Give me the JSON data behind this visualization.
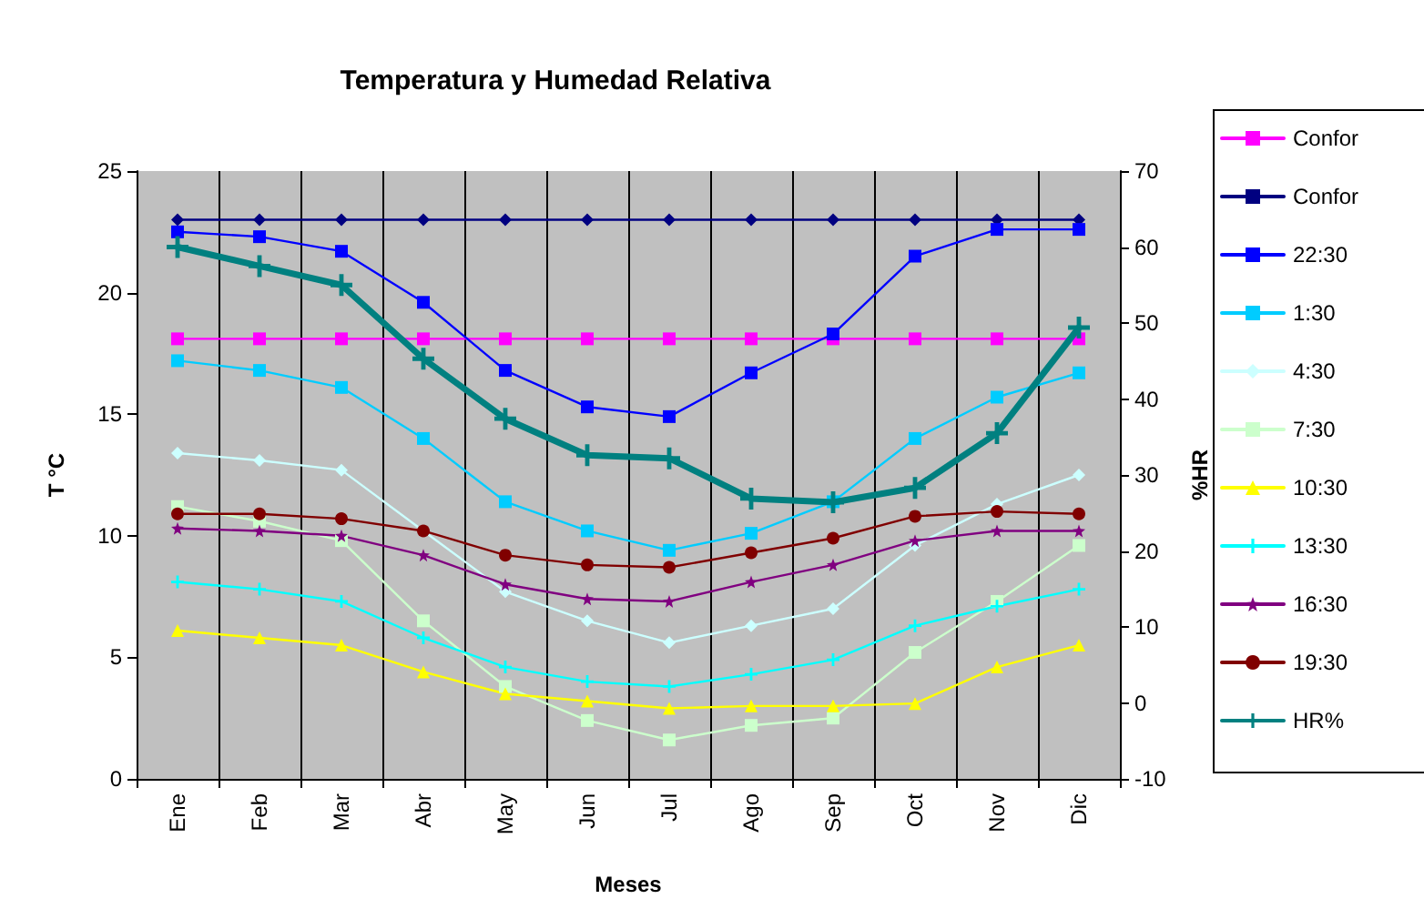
{
  "chart_data": {
    "type": "line",
    "title": "Temperatura y Humedad Relativa",
    "xlabel": "Meses",
    "ylabel": "T °C",
    "y2label": "%HR",
    "categories": [
      "Ene",
      "Feb",
      "Mar",
      "Abr",
      "May",
      "Jun",
      "Jul",
      "Ago",
      "Sep",
      "Oct",
      "Nov",
      "Dic"
    ],
    "ylim": [
      0,
      25
    ],
    "yticks": [
      0,
      5,
      10,
      15,
      20,
      25
    ],
    "y2lim": [
      -10,
      70
    ],
    "y2ticks": [
      -10,
      0,
      10,
      20,
      30,
      40,
      50,
      60,
      70
    ],
    "grid": "x",
    "legend": "right",
    "series": [
      {
        "name": "Confor",
        "color": "#ff00ff",
        "marker": "square",
        "values": [
          18.1,
          18.1,
          18.1,
          18.1,
          18.1,
          18.1,
          18.1,
          18.1,
          18.1,
          18.1,
          18.1,
          18.1
        ]
      },
      {
        "name": "Confor",
        "color": "#000080",
        "marker": "diamond",
        "values": [
          23.0,
          23.0,
          23.0,
          23.0,
          23.0,
          23.0,
          23.0,
          23.0,
          23.0,
          23.0,
          23.0,
          23.0
        ]
      },
      {
        "name": "22:30",
        "color": "#0000ff",
        "marker": "square",
        "values": [
          22.5,
          22.3,
          21.7,
          19.6,
          16.8,
          15.3,
          14.9,
          16.7,
          18.3,
          21.5,
          22.6,
          22.6
        ]
      },
      {
        "name": "1:30",
        "color": "#00ccff",
        "marker": "square",
        "values": [
          17.2,
          16.8,
          16.1,
          14.0,
          11.4,
          10.2,
          9.4,
          10.1,
          11.4,
          14.0,
          15.7,
          16.7
        ]
      },
      {
        "name": "4:30",
        "color": "#ccffff",
        "marker": "diamond",
        "values": [
          13.4,
          13.1,
          12.7,
          10.2,
          7.7,
          6.5,
          5.6,
          6.3,
          7.0,
          9.6,
          11.3,
          12.5
        ]
      },
      {
        "name": "7:30",
        "color": "#ccffcc",
        "marker": "square",
        "values": [
          11.2,
          10.6,
          9.8,
          6.5,
          3.8,
          2.4,
          1.6,
          2.2,
          2.5,
          5.2,
          7.3,
          9.6
        ]
      },
      {
        "name": "10:30",
        "color": "#ffff00",
        "marker": "triangle",
        "values": [
          6.1,
          5.8,
          5.5,
          4.4,
          3.5,
          3.2,
          2.9,
          3.0,
          3.0,
          3.1,
          4.6,
          5.5
        ]
      },
      {
        "name": "13:30",
        "color": "#00ffff",
        "marker": "cross",
        "values": [
          8.1,
          7.8,
          7.3,
          5.8,
          4.6,
          4.0,
          3.8,
          4.3,
          4.9,
          6.3,
          7.1,
          7.8
        ]
      },
      {
        "name": "16:30",
        "color": "#800080",
        "marker": "star",
        "values": [
          10.3,
          10.2,
          10.0,
          9.2,
          8.0,
          7.4,
          7.3,
          8.1,
          8.8,
          9.8,
          10.2,
          10.2
        ]
      },
      {
        "name": "19:30",
        "color": "#800000",
        "marker": "circle",
        "values": [
          10.9,
          10.9,
          10.7,
          10.2,
          9.2,
          8.8,
          8.7,
          9.3,
          9.9,
          10.8,
          11.0,
          10.9
        ]
      },
      {
        "name": "HR%",
        "color": "#008080",
        "marker": "cross",
        "axis": "y2",
        "values": [
          60,
          57.5,
          55,
          45.3,
          37.4,
          32.6,
          32.2,
          26.9,
          26.4,
          28.3,
          35.5,
          49.4
        ]
      }
    ]
  }
}
